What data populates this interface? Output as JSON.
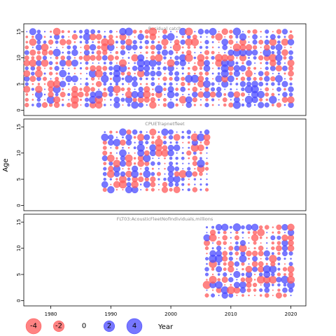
{
  "chart_data": {
    "type": "scatter",
    "subtype": "bubble residual plot",
    "xlabel": "Year",
    "ylabel": "Age",
    "xlim": [
      1975.5,
      2022.5
    ],
    "xticks": [
      1980,
      1990,
      2000,
      2010,
      2020
    ],
    "positive_color": "#4a4aff",
    "negative_color": "#ff5a5a",
    "panels": [
      {
        "title": "Residual catch",
        "ylim": [
          -1,
          16.5
        ],
        "yticks": [
          0,
          5,
          10,
          15
        ],
        "x_range": [
          1976,
          2020
        ],
        "age_range": [
          1,
          15
        ],
        "seed": 11
      },
      {
        "title": "CPUETrapnetfleet",
        "ylim": [
          -1,
          16.5
        ],
        "yticks": [
          0,
          5,
          10,
          15
        ],
        "x_range": [
          1989,
          2006
        ],
        "age_range": [
          3,
          14
        ],
        "seed": 29
      },
      {
        "title": "FLT03:AcousticFleetNofIndividuals,millions",
        "ylim": [
          -1,
          16.5
        ],
        "yticks": [
          0,
          5,
          10,
          15
        ],
        "x_range": [
          2006,
          2020
        ],
        "age_range": [
          1,
          14
        ],
        "seed": 47
      }
    ],
    "legend": {
      "placement": "bottom-left",
      "entries": [
        {
          "label": "-4",
          "value": -4
        },
        {
          "label": "-2",
          "value": -2
        },
        {
          "label": "0",
          "value": 0
        },
        {
          "label": "2",
          "value": 2
        },
        {
          "label": "4",
          "value": 4
        }
      ]
    }
  }
}
